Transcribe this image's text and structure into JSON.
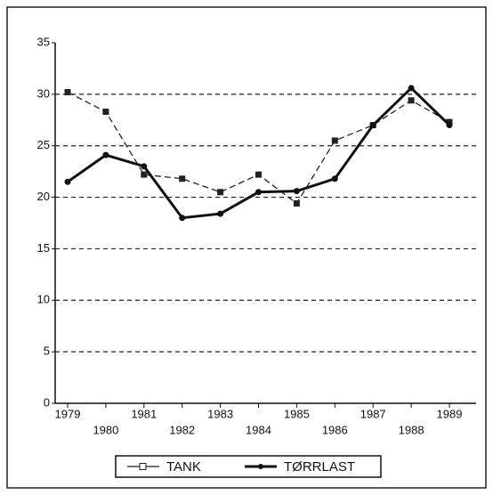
{
  "chart_data": {
    "type": "line",
    "categories": [
      "1979",
      "1980",
      "1981",
      "1982",
      "1983",
      "1984",
      "1985",
      "1986",
      "1987",
      "1988",
      "1989"
    ],
    "series": [
      {
        "name": "TANK",
        "color": "#222222",
        "dashed": true,
        "marker": "square",
        "values": [
          30.2,
          28.3,
          22.2,
          21.8,
          20.5,
          22.2,
          19.4,
          25.5,
          27.0,
          29.4,
          27.3
        ]
      },
      {
        "name": "TØRRLAST",
        "color": "#111111",
        "dashed": false,
        "marker": "circle",
        "values": [
          21.5,
          24.1,
          23.0,
          18.0,
          18.4,
          20.5,
          20.6,
          21.8,
          27.0,
          30.6,
          27.0
        ]
      }
    ],
    "ylim": [
      0,
      35
    ],
    "yticks": [
      0,
      5,
      10,
      15,
      20,
      25,
      30,
      35
    ],
    "grid": true,
    "legend": "bottom"
  }
}
